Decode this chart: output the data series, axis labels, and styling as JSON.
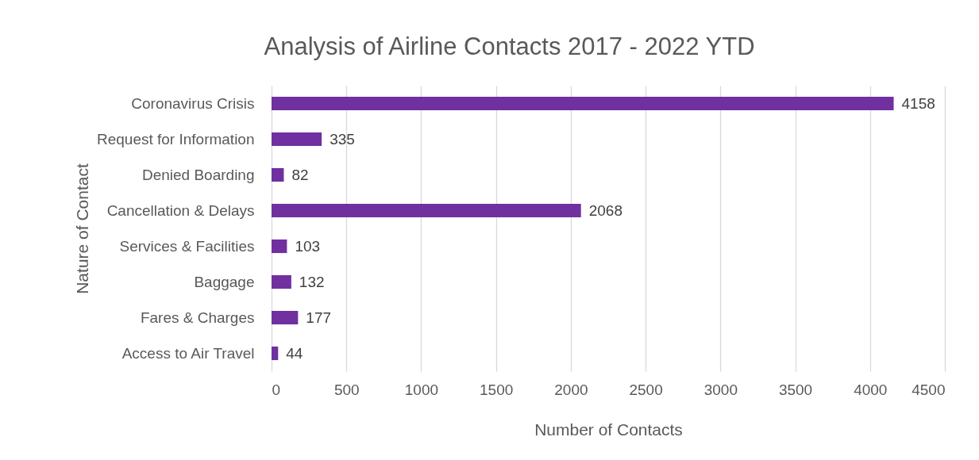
{
  "chart_data": {
    "type": "bar",
    "orientation": "horizontal",
    "title": "Analysis of Airline Contacts 2017 - 2022 YTD",
    "xlabel": "Number of Contacts",
    "ylabel": "Nature of Contact",
    "categories": [
      "Coronavirus Crisis",
      "Request for Information",
      "Denied Boarding",
      "Cancellation & Delays",
      "Services & Facilities",
      "Baggage",
      "Fares & Charges",
      "Access to Air Travel"
    ],
    "values": [
      4158,
      335,
      82,
      2068,
      103,
      132,
      177,
      44
    ],
    "color": "#7030a0",
    "xlim": [
      0,
      4500
    ],
    "xticks": [
      0,
      500,
      1000,
      1500,
      2000,
      2500,
      3000,
      3500,
      4000,
      4500
    ],
    "grid": "x",
    "data_labels": true
  }
}
